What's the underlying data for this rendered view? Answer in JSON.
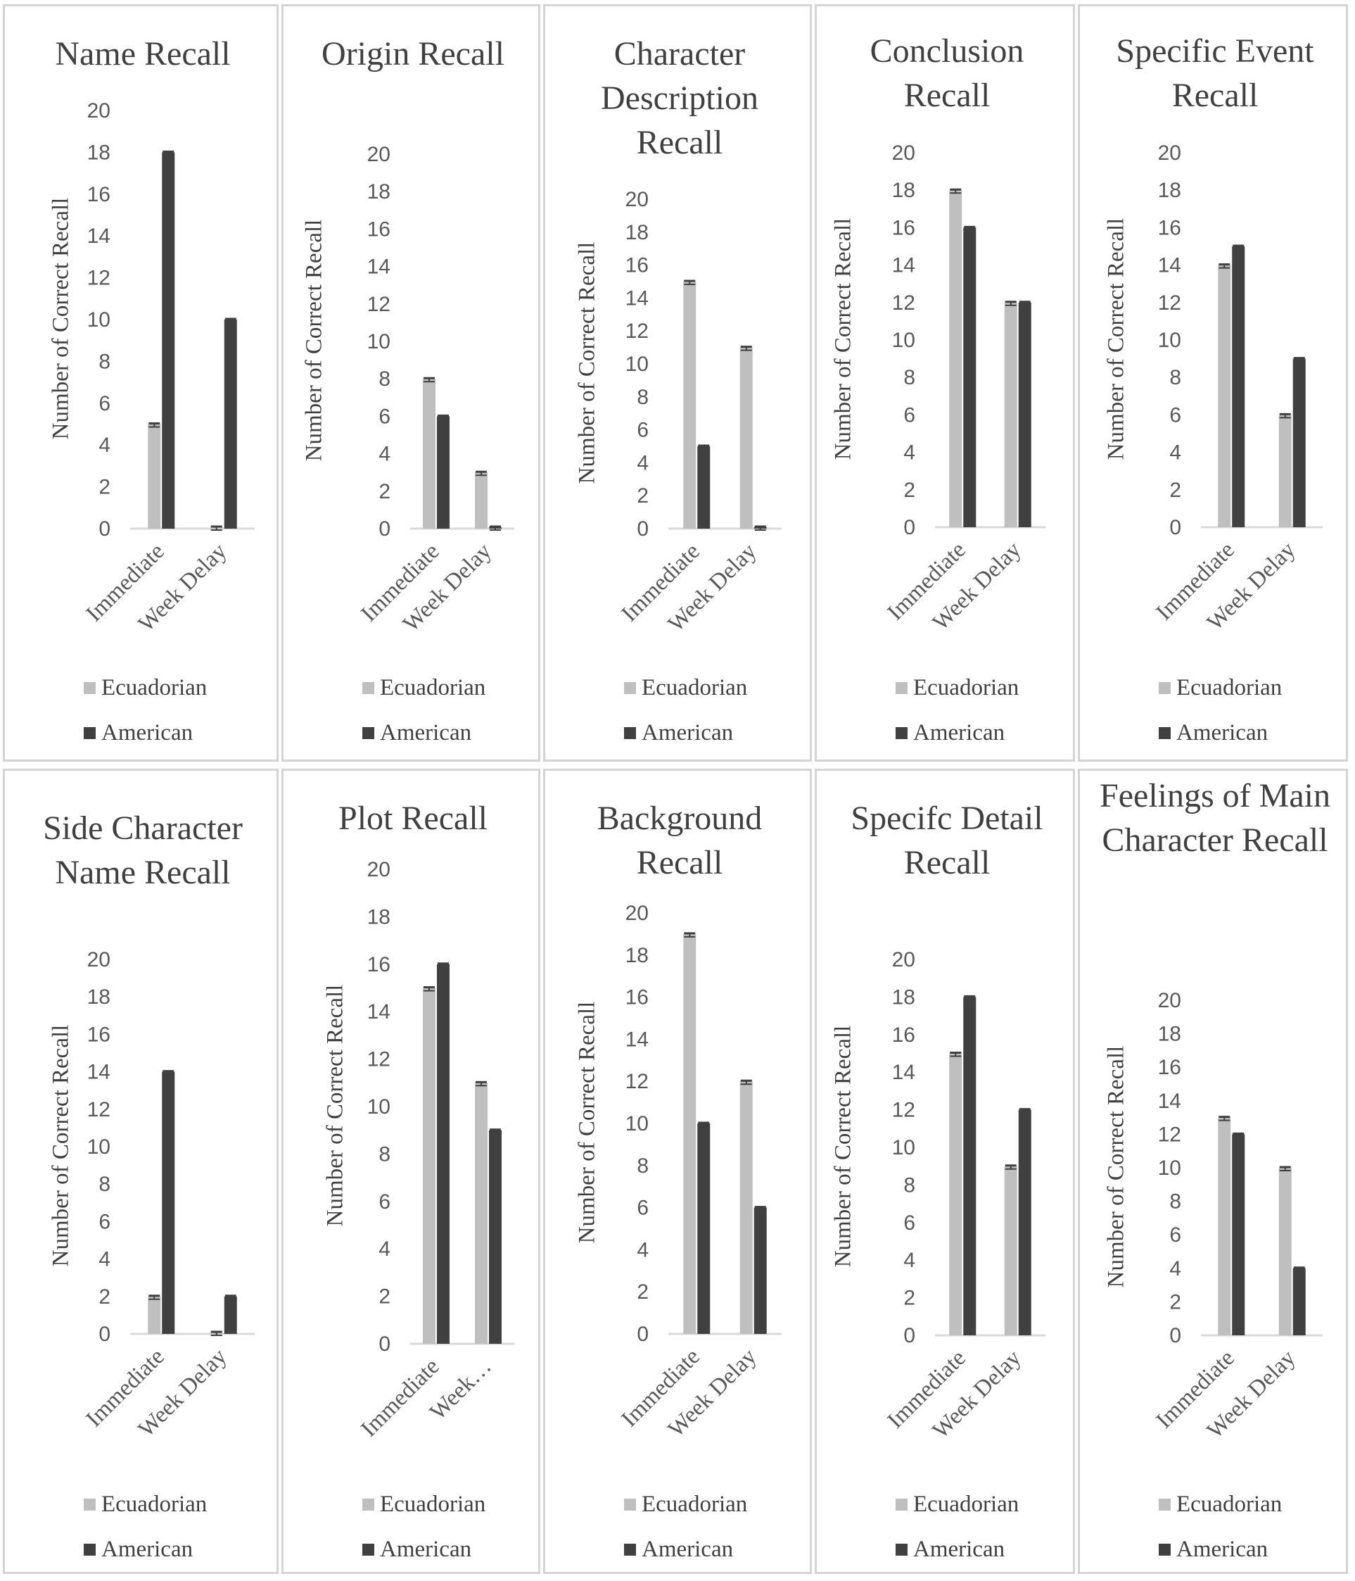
{
  "legend": {
    "series": [
      "Ecuadorian",
      "American"
    ]
  },
  "colors": {
    "Ecuadorian": "#bfbfbf",
    "American": "#404040",
    "axis": "#d9d9d9",
    "panel_border": "#d4d4d4",
    "error_bar": "#404040"
  },
  "chart_data": [
    {
      "type": "bar",
      "title": "Name Recall",
      "xlabel": "",
      "ylabel": "Number of Correct Recall",
      "ylim": [
        0,
        20
      ],
      "yticks": [
        0,
        2,
        4,
        6,
        8,
        10,
        12,
        14,
        16,
        18,
        20
      ],
      "categories": [
        "Immediate",
        "Week Delay"
      ],
      "series": [
        {
          "name": "Ecuadorian",
          "values": [
            5,
            0
          ]
        },
        {
          "name": "American",
          "values": [
            18,
            10
          ]
        }
      ],
      "legend_position": "bottom"
    },
    {
      "type": "bar",
      "title": "Origin Recall",
      "xlabel": "",
      "ylabel": "Number of Correct Recall",
      "ylim": [
        0,
        20
      ],
      "yticks": [
        0,
        2,
        4,
        6,
        8,
        10,
        12,
        14,
        16,
        18,
        20
      ],
      "categories": [
        "Immediate",
        "Week Delay"
      ],
      "series": [
        {
          "name": "Ecuadorian",
          "values": [
            8,
            3
          ]
        },
        {
          "name": "American",
          "values": [
            6,
            0
          ]
        }
      ],
      "legend_position": "bottom"
    },
    {
      "type": "bar",
      "title": "Character Description Recall",
      "xlabel": "",
      "ylabel": "Number of Correct Recall",
      "ylim": [
        0,
        20
      ],
      "yticks": [
        0,
        2,
        4,
        6,
        8,
        10,
        12,
        14,
        16,
        18,
        20
      ],
      "categories": [
        "Immediate",
        "Week Delay"
      ],
      "series": [
        {
          "name": "Ecuadorian",
          "values": [
            15,
            11
          ]
        },
        {
          "name": "American",
          "values": [
            5,
            0
          ]
        }
      ],
      "legend_position": "bottom"
    },
    {
      "type": "bar",
      "title": "Conclusion Recall",
      "xlabel": "",
      "ylabel": "Number of Correct Recall",
      "ylim": [
        0,
        20
      ],
      "yticks": [
        0,
        2,
        4,
        6,
        8,
        10,
        12,
        14,
        16,
        18,
        20
      ],
      "categories": [
        "Immediate",
        "Week Delay"
      ],
      "series": [
        {
          "name": "Ecuadorian",
          "values": [
            18,
            12
          ]
        },
        {
          "name": "American",
          "values": [
            16,
            12
          ]
        }
      ],
      "legend_position": "bottom"
    },
    {
      "type": "bar",
      "title": "Specific Event Recall",
      "xlabel": "",
      "ylabel": "Number of Correct Recall",
      "ylim": [
        0,
        20
      ],
      "yticks": [
        0,
        2,
        4,
        6,
        8,
        10,
        12,
        14,
        16,
        18,
        20
      ],
      "categories": [
        "Immediate",
        "Week Delay"
      ],
      "series": [
        {
          "name": "Ecuadorian",
          "values": [
            14,
            6
          ]
        },
        {
          "name": "American",
          "values": [
            15,
            9
          ]
        }
      ],
      "legend_position": "bottom"
    },
    {
      "type": "bar",
      "title": "Side Character Name Recall",
      "xlabel": "",
      "ylabel": "Number of Correct Recall",
      "ylim": [
        0,
        20
      ],
      "yticks": [
        0,
        2,
        4,
        6,
        8,
        10,
        12,
        14,
        16,
        18,
        20
      ],
      "categories": [
        "Immediate",
        "Week Delay"
      ],
      "series": [
        {
          "name": "Ecuadorian",
          "values": [
            2,
            0
          ]
        },
        {
          "name": "American",
          "values": [
            14,
            2
          ]
        }
      ],
      "legend_position": "bottom"
    },
    {
      "type": "bar",
      "title": "Plot Recall",
      "xlabel": "",
      "ylabel": "Number of Correct Recall",
      "ylim": [
        0,
        20
      ],
      "yticks": [
        0,
        2,
        4,
        6,
        8,
        10,
        12,
        14,
        16,
        18,
        20
      ],
      "categories": [
        "Immediate",
        "Week…"
      ],
      "series": [
        {
          "name": "Ecuadorian",
          "values": [
            15,
            11
          ]
        },
        {
          "name": "American",
          "values": [
            16,
            9
          ]
        }
      ],
      "legend_position": "bottom"
    },
    {
      "type": "bar",
      "title": "Background Recall",
      "xlabel": "",
      "ylabel": "Number of Correct Recall",
      "ylim": [
        0,
        20
      ],
      "yticks": [
        0,
        2,
        4,
        6,
        8,
        10,
        12,
        14,
        16,
        18,
        20
      ],
      "categories": [
        "Immediate",
        "Week Delay"
      ],
      "series": [
        {
          "name": "Ecuadorian",
          "values": [
            19,
            12
          ]
        },
        {
          "name": "American",
          "values": [
            10,
            6
          ]
        }
      ],
      "legend_position": "bottom"
    },
    {
      "type": "bar",
      "title": "Specifc Detail Recall",
      "xlabel": "",
      "ylabel": "Number of Correct Recall",
      "ylim": [
        0,
        20
      ],
      "yticks": [
        0,
        2,
        4,
        6,
        8,
        10,
        12,
        14,
        16,
        18,
        20
      ],
      "categories": [
        "Immediate",
        "Week Delay"
      ],
      "series": [
        {
          "name": "Ecuadorian",
          "values": [
            15,
            9
          ]
        },
        {
          "name": "American",
          "values": [
            18,
            12
          ]
        }
      ],
      "legend_position": "bottom"
    },
    {
      "type": "bar",
      "title": "Feelings of Main Character Recall",
      "xlabel": "",
      "ylabel": "Number of Correct Recall",
      "ylim": [
        0,
        20
      ],
      "yticks": [
        0,
        2,
        4,
        6,
        8,
        10,
        12,
        14,
        16,
        18,
        20
      ],
      "categories": [
        "Immediate",
        "Week Delay"
      ],
      "series": [
        {
          "name": "Ecuadorian",
          "values": [
            13,
            10
          ]
        },
        {
          "name": "American",
          "values": [
            12,
            4
          ]
        }
      ],
      "legend_position": "bottom"
    }
  ]
}
